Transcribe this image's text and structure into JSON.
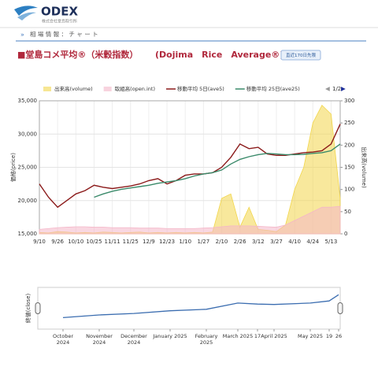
{
  "header": {
    "logo": "ODEX",
    "company": "株式会社堂島取引所",
    "breadcrumb": "相 場 情 報 ： チ ャ ー ト"
  },
  "page_title": "■堂島コメ平均®（米穀指数）",
  "page_title_en": "(Dojima　Rice　Average®)",
  "badge": "直近170日先限",
  "legend_page": "1/2",
  "chart_data": [
    {
      "type": "line",
      "categories": [
        "9/10",
        null,
        "9/26",
        null,
        "10/10",
        null,
        "10/25",
        null,
        "11/11",
        null,
        "11/25",
        null,
        "12/9",
        null,
        "12/23",
        null,
        "1/10",
        null,
        "1/27",
        null,
        "2/10",
        null,
        "2/26",
        null,
        "3/12",
        null,
        "3/27",
        null,
        "4/10",
        null,
        "4/24",
        null,
        "5/13",
        null
      ],
      "ylabel": "価格(price)",
      "y2label": "出来高(volume)",
      "ylim": [
        15000,
        35000
      ],
      "yticks": [
        {
          "value": 15000,
          "label": "15,000"
        },
        {
          "value": 20000,
          "label": "20,000"
        },
        {
          "value": 25000,
          "label": "25,000"
        },
        {
          "value": 30000,
          "label": "30,000"
        },
        {
          "value": 35000,
          "label": "35,000"
        }
      ],
      "y2lim": [
        0,
        300
      ],
      "y2ticks": [
        0,
        50,
        100,
        150,
        200,
        250,
        300
      ],
      "grid": true,
      "series": [
        {
          "name": "出来高(volume)",
          "type": "area",
          "color": "#f2d64b",
          "axis": "y2",
          "values": [
            3,
            2,
            5,
            4,
            2,
            3,
            2,
            4,
            3,
            2,
            3,
            4,
            2,
            3,
            2,
            3,
            2,
            3,
            2,
            4,
            80,
            90,
            15,
            60,
            10,
            8,
            5,
            20,
            100,
            150,
            250,
            290,
            270,
            80
          ]
        },
        {
          "name": "取組高(open.int)",
          "type": "area",
          "color": "#f4b6c8",
          "axis": "y2",
          "values": [
            10,
            12,
            14,
            15,
            16,
            16,
            15,
            15,
            14,
            14,
            14,
            13,
            13,
            13,
            12,
            12,
            12,
            12,
            13,
            14,
            16,
            18,
            18,
            18,
            17,
            16,
            15,
            20,
            30,
            40,
            50,
            60,
            60,
            62
          ]
        },
        {
          "name": "移動平均 5日(ave5)",
          "type": "line",
          "color": "#8b1a1a",
          "values": [
            22500,
            20500,
            19000,
            20000,
            21000,
            21500,
            22300,
            22000,
            21800,
            22000,
            22200,
            22500,
            23000,
            23300,
            22500,
            23000,
            23800,
            24000,
            24000,
            24200,
            25000,
            26500,
            28500,
            27800,
            28000,
            27000,
            26800,
            26800,
            27000,
            27200,
            27300,
            27500,
            28500,
            31500
          ]
        },
        {
          "name": "移動平均 25日(ave25)",
          "type": "line",
          "color": "#3a8a6a",
          "values": [
            null,
            null,
            null,
            null,
            null,
            null,
            20500,
            21000,
            21400,
            21700,
            21900,
            22100,
            22300,
            22600,
            22800,
            23000,
            23300,
            23700,
            24000,
            24200,
            24600,
            25500,
            26200,
            26600,
            26900,
            27100,
            27000,
            26900,
            26900,
            26950,
            27100,
            27200,
            27500,
            28500
          ]
        }
      ]
    },
    {
      "type": "line",
      "ylabel": "終値(close)",
      "color": "#3b6db0",
      "ylim": [
        15000,
        35000
      ],
      "categories": [
        "October 2024",
        "November 2024",
        "December 2024",
        "January 2025",
        "February 2025",
        "March 2025",
        "17",
        "April 2025",
        "May 2025",
        "19",
        "26"
      ],
      "values": [
        20500,
        21800,
        22500,
        23800,
        24500,
        27500,
        27000,
        26800,
        27500,
        28500,
        31500
      ]
    }
  ]
}
